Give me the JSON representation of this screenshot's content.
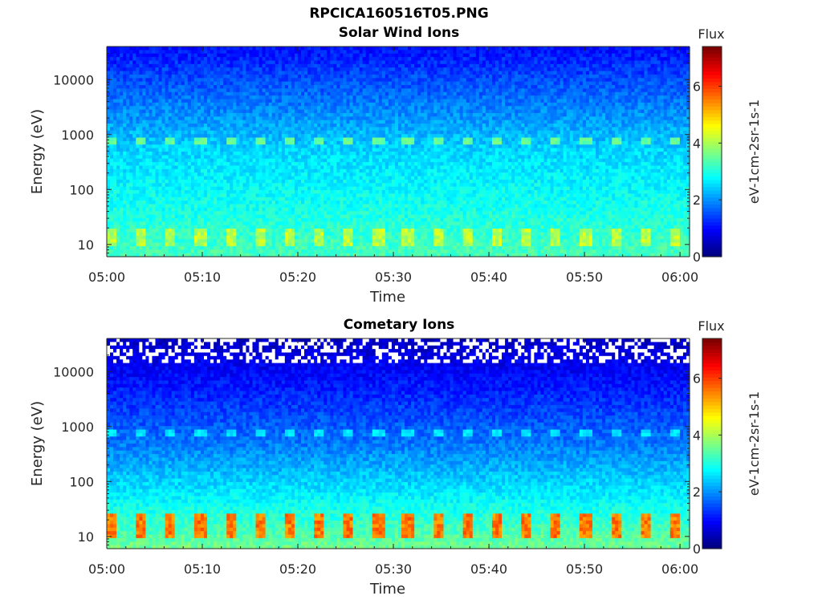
{
  "figure": {
    "title": "RPCICA160516T05.PNG"
  },
  "chart_data": [
    {
      "type": "heatmap",
      "title": "Solar Wind Ions",
      "xlabel": "Time",
      "ylabel": "Energy (eV)",
      "x_ticks": [
        "05:00",
        "05:10",
        "05:20",
        "05:30",
        "05:40",
        "05:50",
        "06:00"
      ],
      "x_range": [
        "05:00",
        "06:01"
      ],
      "y_scale": "log",
      "y_ticks": [
        "10",
        "100",
        "1000",
        "10000"
      ],
      "y_range": [
        6,
        40000
      ],
      "colorbar": {
        "label_top": "Flux",
        "units": "eV-1cm-2sr-1s-1",
        "colormap": "jet",
        "range": [
          0,
          7.4
        ],
        "ticks": [
          "0",
          "2",
          "4",
          "6"
        ]
      },
      "features": {
        "background_level_high_energy": 1.0,
        "background_level_mid_energy": 2.5,
        "background_level_low_energy": 3.3,
        "band_energy_eV": 800,
        "band_level": 3.5,
        "low_energy_peak_level": 4.1,
        "low_energy_peak_range_eV": [
          10,
          20
        ],
        "sweep_period_min": 3.1
      }
    },
    {
      "type": "heatmap",
      "title": "Cometary Ions",
      "xlabel": "Time",
      "ylabel": "Energy (eV)",
      "x_ticks": [
        "05:00",
        "05:10",
        "05:20",
        "05:30",
        "05:40",
        "05:50",
        "06:00"
      ],
      "x_range": [
        "05:00",
        "06:01"
      ],
      "y_scale": "log",
      "y_ticks": [
        "10",
        "100",
        "1000",
        "10000"
      ],
      "y_range": [
        6,
        40000
      ],
      "colorbar": {
        "label_top": "Flux",
        "units": "eV-1cm-2sr-1s-1",
        "colormap": "jet",
        "range": [
          0,
          7.4
        ],
        "ticks": [
          "0",
          "2",
          "4",
          "6"
        ]
      },
      "features": {
        "background_level_high_energy": 0.5,
        "background_level_mid_energy": 1.8,
        "background_level_low_energy": 3.6,
        "band_energy_eV": 800,
        "band_level": 2.6,
        "low_energy_peak_level": 5.6,
        "low_energy_peak_range_eV": [
          10,
          25
        ],
        "sweep_period_min": 3.1,
        "missing_data_above_eV": 15000
      }
    }
  ]
}
